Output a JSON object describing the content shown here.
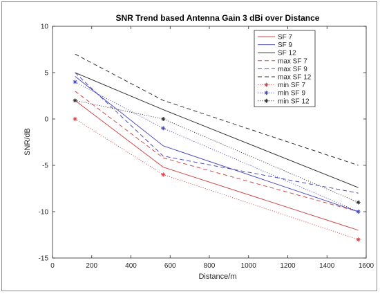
{
  "chart_data": {
    "type": "line",
    "title": "SNR Trend based Antenna Gain 3 dBi over Distance",
    "xlabel": "Distance/m",
    "ylabel": "SNR/dB",
    "xlim": [
      0,
      1600
    ],
    "ylim": [
      -15,
      10
    ],
    "xticks": [
      0,
      200,
      400,
      600,
      800,
      1000,
      1200,
      1400,
      1600
    ],
    "yticks": [
      -15,
      -10,
      -5,
      0,
      5,
      10
    ],
    "grid": false,
    "legend_position": "top-right",
    "series": [
      {
        "name": "SF 7",
        "style": "solid",
        "color": "#cd4b4b",
        "x": [
          115,
          565,
          1560
        ],
        "y": [
          2,
          -5.2,
          -12
        ]
      },
      {
        "name": "SF 9",
        "style": "solid",
        "color": "#4c4cb8",
        "x": [
          115,
          565,
          1560
        ],
        "y": [
          4.6,
          -2.9,
          -10
        ]
      },
      {
        "name": "SF 12",
        "style": "solid",
        "color": "#333333",
        "x": [
          115,
          565,
          1560
        ],
        "y": [
          5,
          1,
          -7.4
        ]
      },
      {
        "name": "max SF 7",
        "style": "dashed",
        "color": "#cd4b4b",
        "x": [
          115,
          565,
          1560
        ],
        "y": [
          3,
          -4.2,
          -10
        ]
      },
      {
        "name": "max SF 9",
        "style": "dashed",
        "color": "#4c4cb8",
        "x": [
          115,
          565,
          1560
        ],
        "y": [
          5,
          -4,
          -8
        ]
      },
      {
        "name": "max SF 12",
        "style": "dashed",
        "color": "#333333",
        "x": [
          115,
          565,
          1560
        ],
        "y": [
          7,
          2,
          -5
        ]
      },
      {
        "name": "min SF 7",
        "style": "dotted-star",
        "color": "#cd4b4b",
        "x": [
          115,
          565,
          1560
        ],
        "y": [
          0,
          -6,
          -13
        ]
      },
      {
        "name": "min SF 9",
        "style": "dotted-star",
        "color": "#4c4cb8",
        "x": [
          115,
          565,
          1560
        ],
        "y": [
          4,
          -1,
          -10
        ]
      },
      {
        "name": "min SF 12",
        "style": "dotted-star",
        "color": "#333333",
        "x": [
          115,
          565,
          1560
        ],
        "y": [
          2,
          0,
          -9
        ]
      }
    ]
  }
}
